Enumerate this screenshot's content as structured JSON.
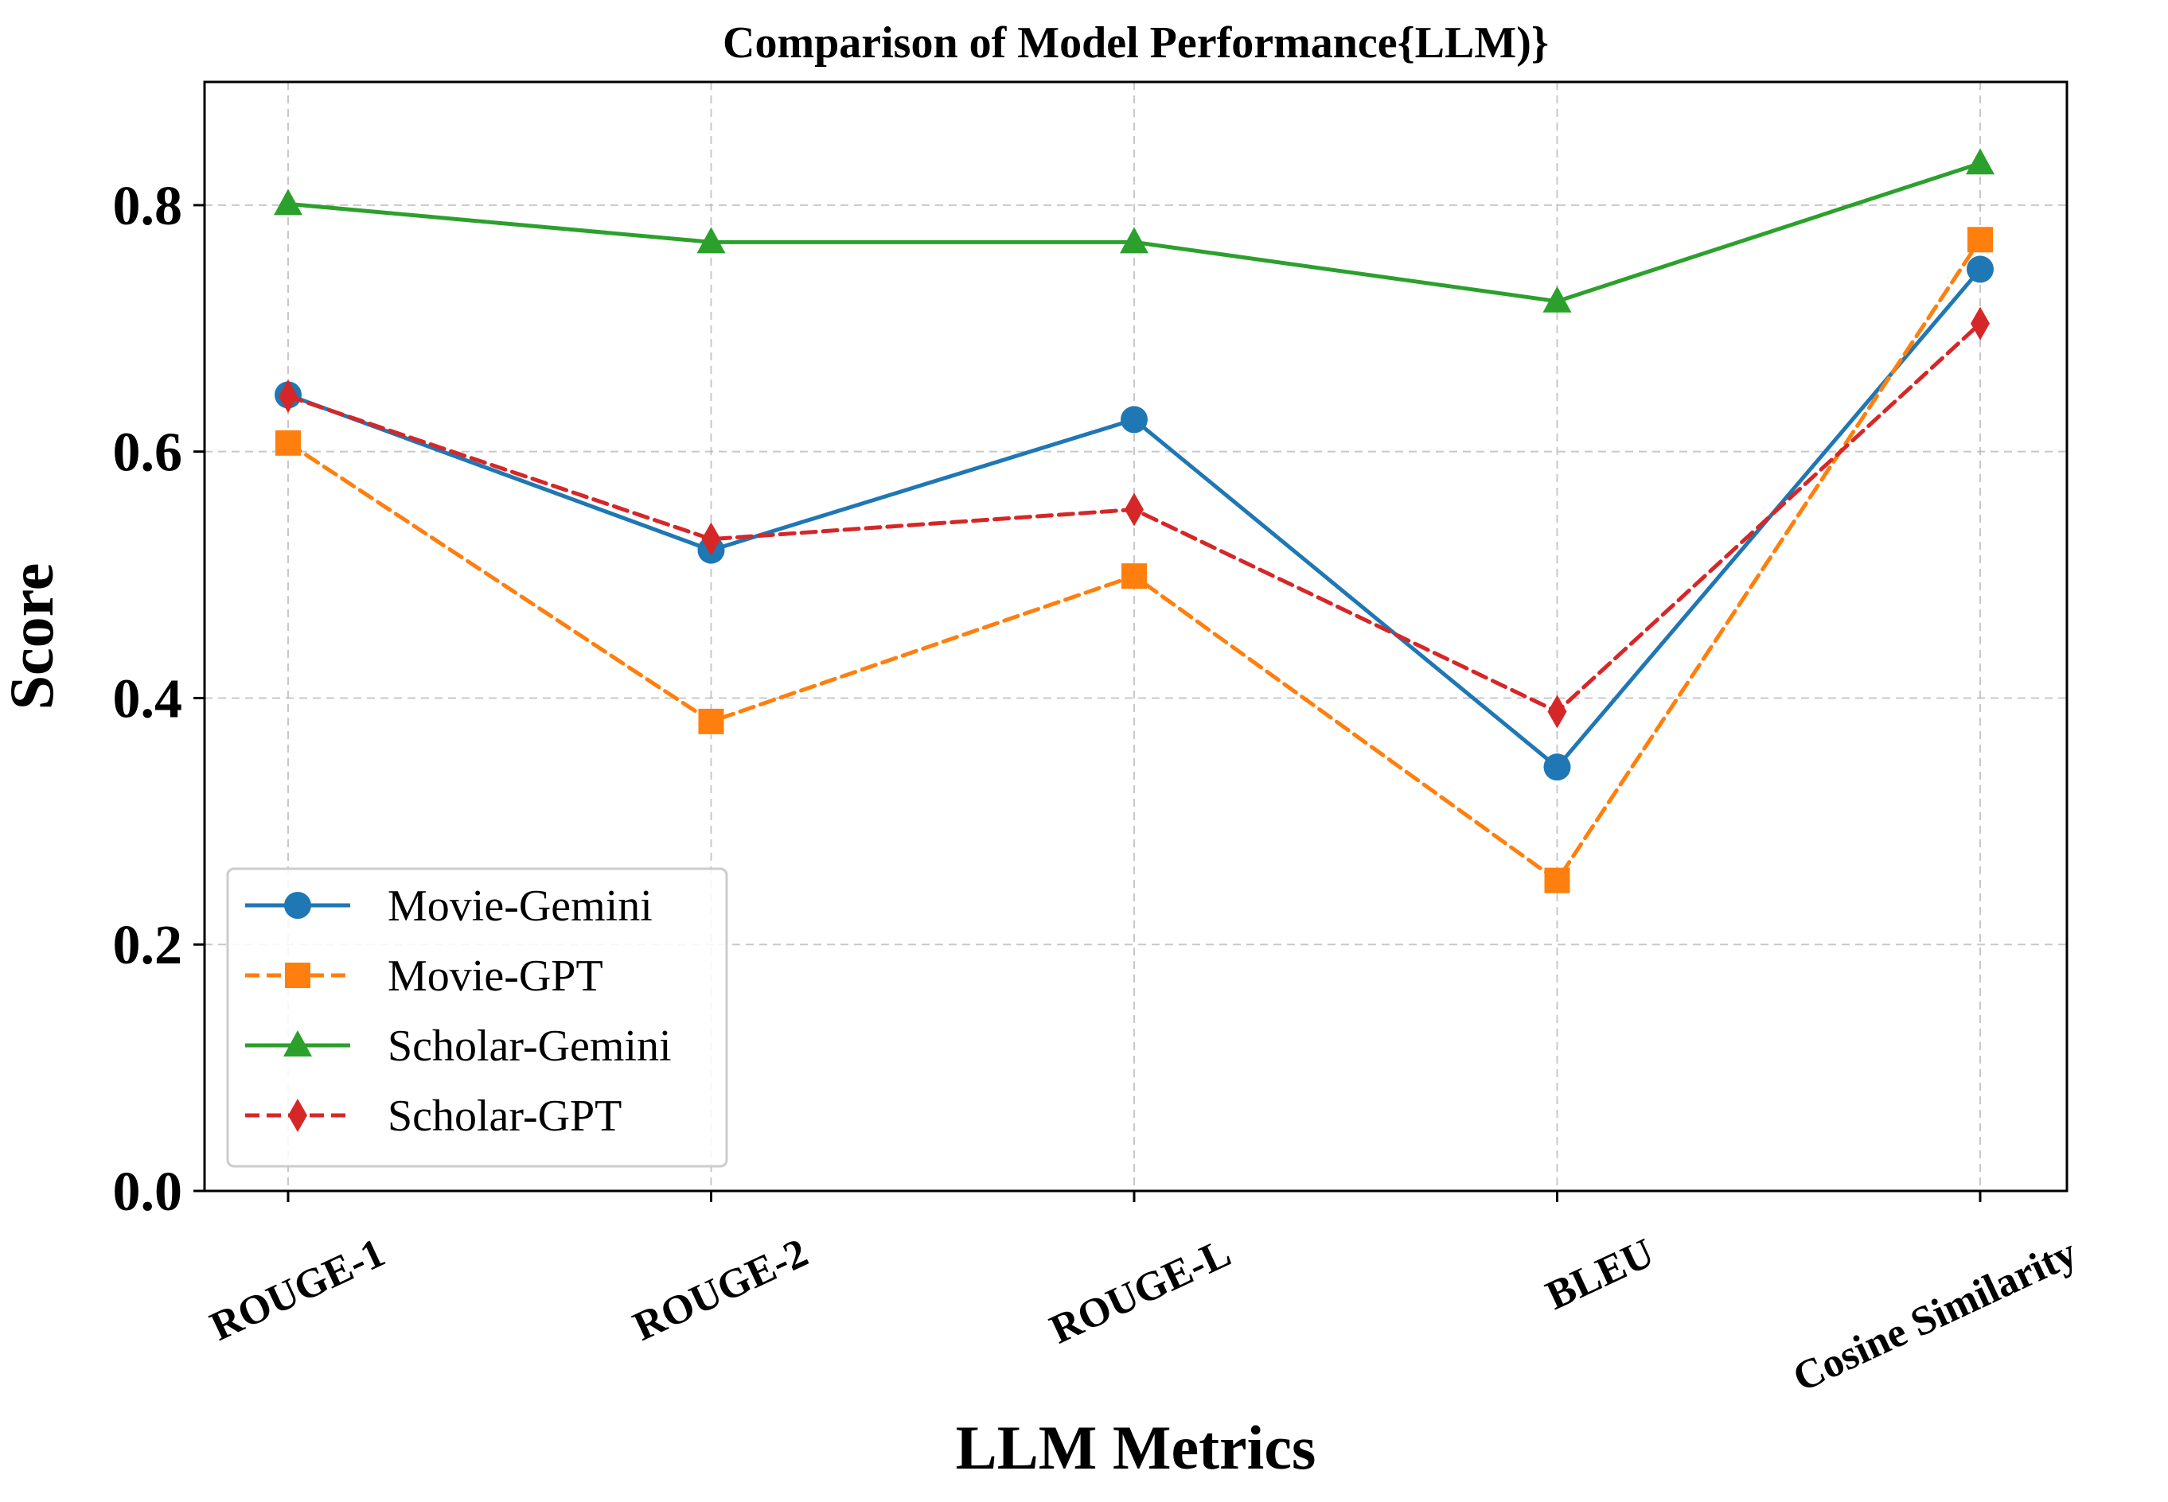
{
  "chart_data": {
    "type": "line",
    "title": "Comparison of Model Performance{LLM)}",
    "xlabel": "LLM Metrics",
    "ylabel": "Score",
    "categories": [
      "ROUGE-1",
      "ROUGE-2",
      "ROUGE-L",
      "BLEU",
      "Cosine Similarity"
    ],
    "ylim": [
      0.0,
      0.9
    ],
    "yticks": [
      0.0,
      0.2,
      0.4,
      0.6,
      0.8
    ],
    "ytick_labels": [
      "0.0",
      "0.2",
      "0.4",
      "0.6",
      "0.8"
    ],
    "grid": true,
    "legend_position": "lower-left",
    "series": [
      {
        "name": "Movie-Gemini",
        "values": [
          0.646,
          0.52,
          0.626,
          0.344,
          0.748
        ],
        "color": "#1f77b4",
        "marker": "circle",
        "linestyle": "solid"
      },
      {
        "name": "Movie-GPT",
        "values": [
          0.607,
          0.381,
          0.499,
          0.252,
          0.772
        ],
        "color": "#ff7f0e",
        "marker": "square",
        "linestyle": "dashed"
      },
      {
        "name": "Scholar-Gemini",
        "values": [
          0.801,
          0.77,
          0.77,
          0.722,
          0.834
        ],
        "color": "#2ca02c",
        "marker": "triangle",
        "linestyle": "solid"
      },
      {
        "name": "Scholar-GPT",
        "values": [
          0.645,
          0.529,
          0.553,
          0.389,
          0.704
        ],
        "color": "#d62728",
        "marker": "diamond",
        "linestyle": "dashed"
      }
    ]
  }
}
